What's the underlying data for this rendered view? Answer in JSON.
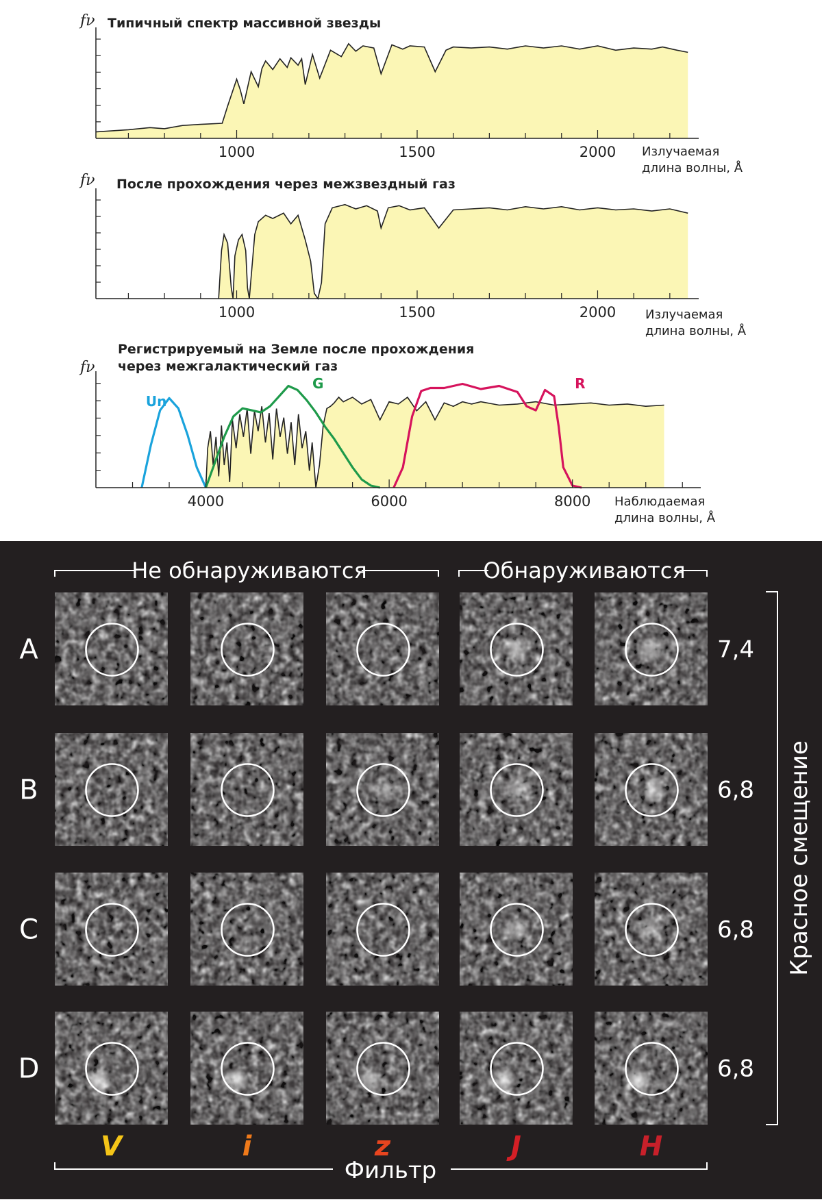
{
  "chart_data": [
    {
      "type": "area",
      "title": "Типичный спектр массивной звезды",
      "ylabel": "fν",
      "xlabel_lines": [
        "Излучаемая",
        "длина волны, Å"
      ],
      "xlim": [
        610,
        2280
      ],
      "ticks": [
        1000,
        1500,
        2000
      ],
      "tick_labels": [
        "1000",
        "1500",
        "2000"
      ],
      "fill_color": "#fbf6b5",
      "x": [
        610,
        700,
        760,
        800,
        850,
        900,
        960,
        975,
        1000,
        1010,
        1020,
        1040,
        1060,
        1070,
        1080,
        1100,
        1120,
        1140,
        1150,
        1170,
        1180,
        1190,
        1210,
        1230,
        1260,
        1290,
        1310,
        1330,
        1350,
        1380,
        1400,
        1430,
        1460,
        1480,
        1520,
        1550,
        1580,
        1600,
        1650,
        1700,
        1750,
        1800,
        1850,
        1900,
        1950,
        2000,
        2050,
        2100,
        2150,
        2180,
        2220,
        2250
      ],
      "y": [
        0.06,
        0.08,
        0.1,
        0.09,
        0.12,
        0.13,
        0.14,
        0.3,
        0.55,
        0.45,
        0.32,
        0.62,
        0.48,
        0.65,
        0.72,
        0.64,
        0.74,
        0.66,
        0.75,
        0.68,
        0.74,
        0.5,
        0.78,
        0.56,
        0.82,
        0.76,
        0.88,
        0.81,
        0.86,
        0.84,
        0.6,
        0.87,
        0.83,
        0.86,
        0.85,
        0.62,
        0.82,
        0.85,
        0.84,
        0.85,
        0.83,
        0.86,
        0.84,
        0.86,
        0.83,
        0.86,
        0.82,
        0.84,
        0.83,
        0.85,
        0.82,
        0.8
      ]
    },
    {
      "type": "area",
      "title": "После прохождения через межзвездный газ",
      "ylabel": "fν",
      "xlabel_lines": [
        "Излучаемая",
        "длина волны, Å"
      ],
      "xlim": [
        610,
        2280
      ],
      "ticks": [
        1000,
        1500,
        2000
      ],
      "tick_labels": [
        "1000",
        "1500",
        "2000"
      ],
      "fill_color": "#fbf6b5",
      "x": [
        950,
        958,
        965,
        975,
        985,
        990,
        995,
        1005,
        1015,
        1025,
        1030,
        1035,
        1040,
        1050,
        1060,
        1080,
        1100,
        1130,
        1150,
        1170,
        1190,
        1205,
        1215,
        1225,
        1235,
        1245,
        1265,
        1300,
        1330,
        1360,
        1390,
        1400,
        1420,
        1450,
        1480,
        1520,
        1560,
        1600,
        1650,
        1700,
        1750,
        1800,
        1850,
        1900,
        1950,
        2000,
        2050,
        2100,
        2150,
        2200,
        2250
      ],
      "y": [
        0,
        0.45,
        0.6,
        0.52,
        0.1,
        0,
        0.4,
        0.55,
        0.6,
        0.45,
        0.1,
        0,
        0.2,
        0.6,
        0.72,
        0.78,
        0.75,
        0.8,
        0.7,
        0.78,
        0.55,
        0.35,
        0.05,
        0,
        0.15,
        0.7,
        0.85,
        0.88,
        0.84,
        0.87,
        0.82,
        0.66,
        0.85,
        0.87,
        0.83,
        0.85,
        0.66,
        0.83,
        0.84,
        0.85,
        0.83,
        0.86,
        0.84,
        0.86,
        0.83,
        0.85,
        0.83,
        0.84,
        0.82,
        0.84,
        0.8
      ]
    },
    {
      "type": "area",
      "title_lines": [
        "Регистрируемый на Земле после прохождения",
        "через межгалактический газ"
      ],
      "ylabel": "fν",
      "xlabel_lines": [
        "Наблюдаемая",
        "длина волны, Å"
      ],
      "xlim": [
        2800,
        9400
      ],
      "ticks": [
        4000,
        6000,
        8000
      ],
      "tick_labels": [
        "4000",
        "6000",
        "8000"
      ],
      "fill_color": "#fbf6b5",
      "x": [
        4000,
        4020,
        4050,
        4080,
        4110,
        4140,
        4170,
        4200,
        4230,
        4260,
        4290,
        4330,
        4370,
        4410,
        4450,
        4490,
        4530,
        4570,
        4610,
        4650,
        4690,
        4730,
        4770,
        4810,
        4850,
        4890,
        4930,
        4970,
        5010,
        5050,
        5090,
        5130,
        5160,
        5200,
        5240,
        5280,
        5320,
        5360,
        5400,
        5450,
        5500,
        5600,
        5700,
        5800,
        5900,
        6000,
        6100,
        6200,
        6300,
        6400,
        6500,
        6600,
        6700,
        6800,
        6900,
        7000,
        7200,
        7400,
        7600,
        7800,
        8000,
        8200,
        8400,
        8600,
        8800,
        9000
      ],
      "y": [
        0,
        0.35,
        0.5,
        0.2,
        0.45,
        0.1,
        0.55,
        0.2,
        0.4,
        0.05,
        0.6,
        0.35,
        0.65,
        0.45,
        0.7,
        0.3,
        0.68,
        0.5,
        0.72,
        0.4,
        0.66,
        0.25,
        0.7,
        0.45,
        0.62,
        0.3,
        0.58,
        0.2,
        0.65,
        0.35,
        0.5,
        0.15,
        0.4,
        0,
        0.2,
        0.55,
        0.7,
        0.72,
        0.75,
        0.8,
        0.76,
        0.8,
        0.74,
        0.78,
        0.6,
        0.76,
        0.74,
        0.8,
        0.68,
        0.76,
        0.6,
        0.75,
        0.72,
        0.76,
        0.74,
        0.76,
        0.73,
        0.74,
        0.76,
        0.73,
        0.74,
        0.75,
        0.73,
        0.74,
        0.72,
        0.73
      ],
      "filters": [
        {
          "name": "Un",
          "color": "#1aa3dc",
          "x": [
            3300,
            3400,
            3500,
            3600,
            3700,
            3800,
            3900,
            4000
          ],
          "y": [
            0,
            0.42,
            0.76,
            0.88,
            0.78,
            0.52,
            0.2,
            0
          ]
        },
        {
          "name": "G",
          "color": "#1e9a4a",
          "x": [
            4000,
            4100,
            4200,
            4300,
            4400,
            4500,
            4600,
            4700,
            4800,
            4900,
            5000,
            5100,
            5200,
            5300,
            5400,
            5500,
            5600,
            5700,
            5800,
            5900
          ],
          "y": [
            0,
            0.25,
            0.5,
            0.7,
            0.78,
            0.76,
            0.74,
            0.8,
            0.9,
            1.0,
            0.96,
            0.86,
            0.74,
            0.6,
            0.48,
            0.34,
            0.2,
            0.08,
            0.02,
            0
          ]
        },
        {
          "name": "R",
          "color": "#d6135c",
          "x": [
            6050,
            6150,
            6250,
            6350,
            6450,
            6600,
            6800,
            7000,
            7200,
            7400,
            7500,
            7600,
            7700,
            7800,
            7850,
            7900,
            8000,
            8100
          ],
          "y": [
            0,
            0.2,
            0.7,
            0.95,
            0.98,
            0.98,
            1.02,
            0.97,
            1.0,
            0.94,
            0.8,
            0.76,
            0.96,
            0.9,
            0.6,
            0.2,
            0.02,
            0
          ]
        }
      ]
    }
  ],
  "panel": {
    "not_detected_label": "Не обнаруживаются",
    "detected_label": "Обнаруживаются",
    "axis_label": "Красное смещение",
    "filter_axis_label": "Фильтр",
    "rows": [
      {
        "label": "A",
        "redshift": "7,4"
      },
      {
        "label": "B",
        "redshift": "6,8"
      },
      {
        "label": "C",
        "redshift": "6,8"
      },
      {
        "label": "D",
        "redshift": "6,8"
      }
    ],
    "filters": [
      {
        "label": "V",
        "color": "#f5c518"
      },
      {
        "label": "i",
        "color": "#f07a1a"
      },
      {
        "label": "z",
        "color": "#e8451f"
      },
      {
        "label": "J",
        "color": "#d41f26"
      },
      {
        "label": "H",
        "color": "#c8202a"
      }
    ],
    "source_brightness": [
      [
        0.0,
        0.0,
        0.0,
        0.6,
        0.55
      ],
      [
        0.05,
        0.1,
        0.4,
        0.55,
        0.65
      ],
      [
        0.0,
        0.0,
        0.0,
        0.5,
        0.5
      ],
      [
        0.8,
        0.8,
        0.6,
        0.85,
        0.85
      ]
    ]
  }
}
